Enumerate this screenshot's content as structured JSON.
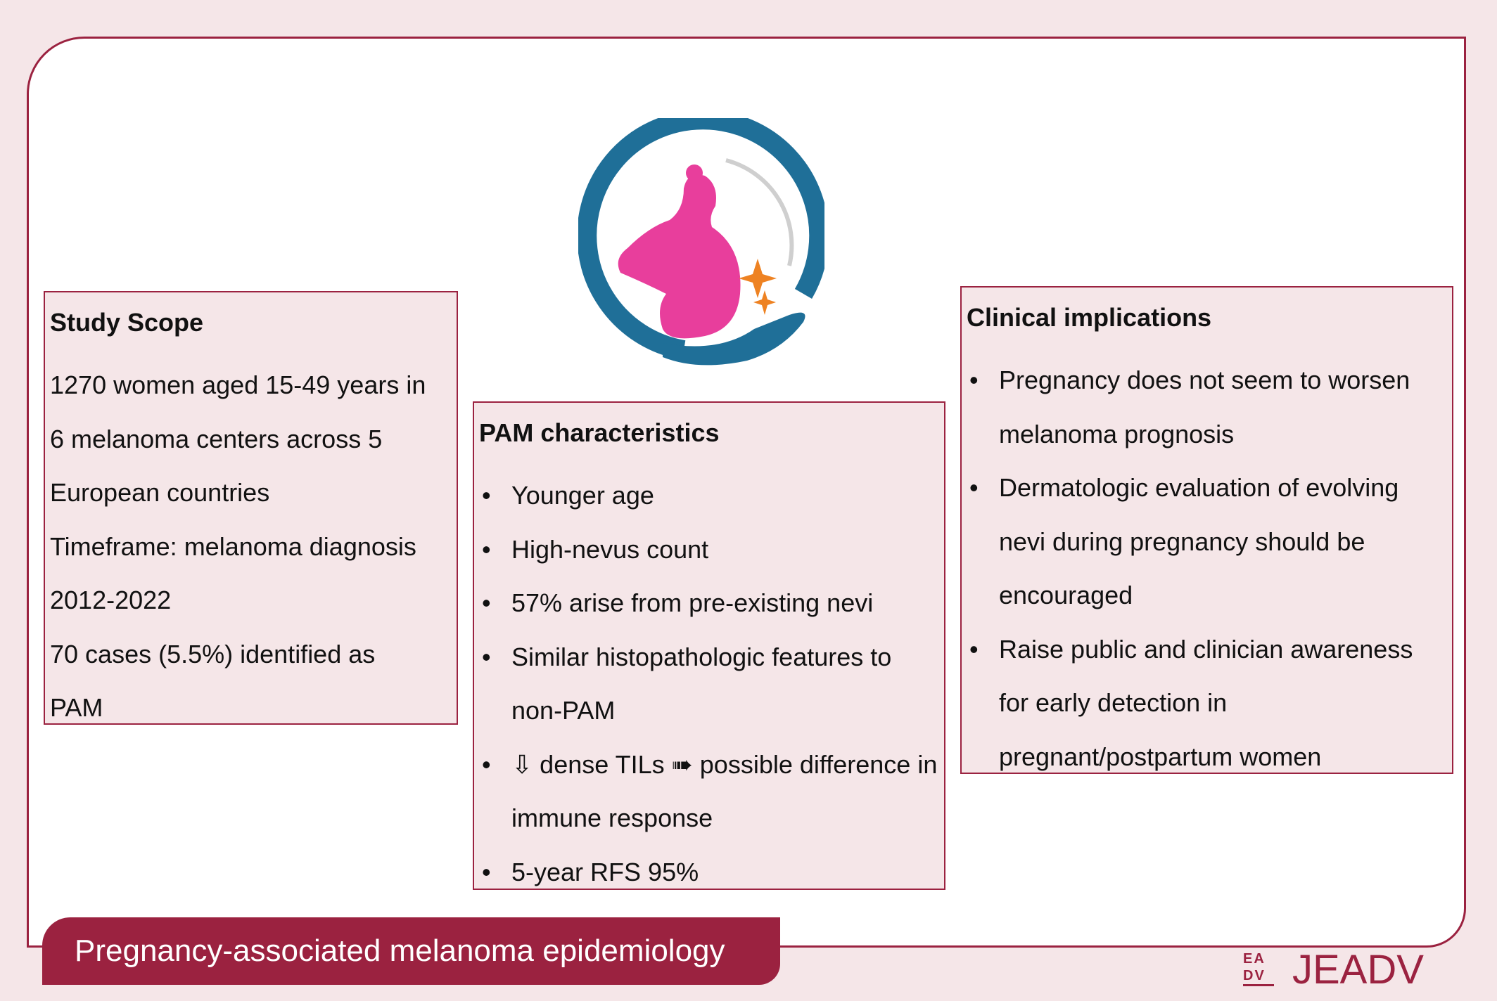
{
  "banner": {
    "title": "Pregnancy-associated melanoma epidemiology"
  },
  "journal_logo": {
    "mark": "EADV",
    "text": "JEADV"
  },
  "logo": {
    "icon": "pregnant-woman-in-hand-circle-icon",
    "colors": {
      "ring": "#1f6f98",
      "figure": "#e83e9c",
      "sparkle": "#ee8222"
    }
  },
  "study_scope": {
    "title": "Study Scope",
    "lines": [
      "1270 women aged 15-49 years in",
      "6 melanoma centers across 5",
      "European countries",
      "Timeframe: melanoma diagnosis",
      "2012-2022",
      "70 cases (5.5%) identified as",
      "PAM"
    ]
  },
  "pam": {
    "title": "PAM characteristics",
    "items": [
      "Younger age",
      "High-nevus count",
      "57% arise from pre-existing nevi",
      "Similar histopathologic features to non-PAM",
      "⇩ dense TILs ➠ possible difference in immune response",
      "5-year RFS 95%"
    ]
  },
  "clinical": {
    "title": "Clinical implications",
    "items": [
      "Pregnancy does not seem to worsen melanoma prognosis",
      "Dermatologic evaluation of evolving nevi during pregnancy should be encouraged",
      "Raise public and clinician awareness for early detection in pregnant/postpartum women"
    ]
  },
  "colors": {
    "accent": "#9b2240",
    "background": "#f5e6e8"
  }
}
